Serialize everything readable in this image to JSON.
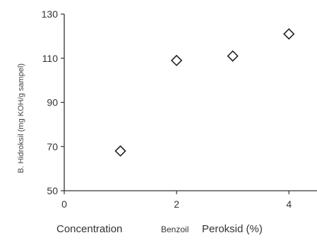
{
  "chart_data": {
    "type": "scatter",
    "title": "",
    "x_parts": [
      "Concentration",
      "Benzoil",
      "Peroksid (%)"
    ],
    "xlabel": "Concentration Benzoil Peroksid (%)",
    "ylabel": "B. Hidroksil (mg KOH/g sampel)",
    "xlim": [
      0,
      4.5
    ],
    "ylim": [
      50,
      130
    ],
    "x_ticks": [
      0,
      2,
      4
    ],
    "y_ticks": [
      50,
      70,
      90,
      110,
      130
    ],
    "grid": false,
    "legend": "none",
    "marker": "diamond-open",
    "series": [
      {
        "x": [
          1,
          2,
          3,
          4
        ],
        "y": [
          68,
          109,
          111,
          121
        ]
      }
    ]
  }
}
